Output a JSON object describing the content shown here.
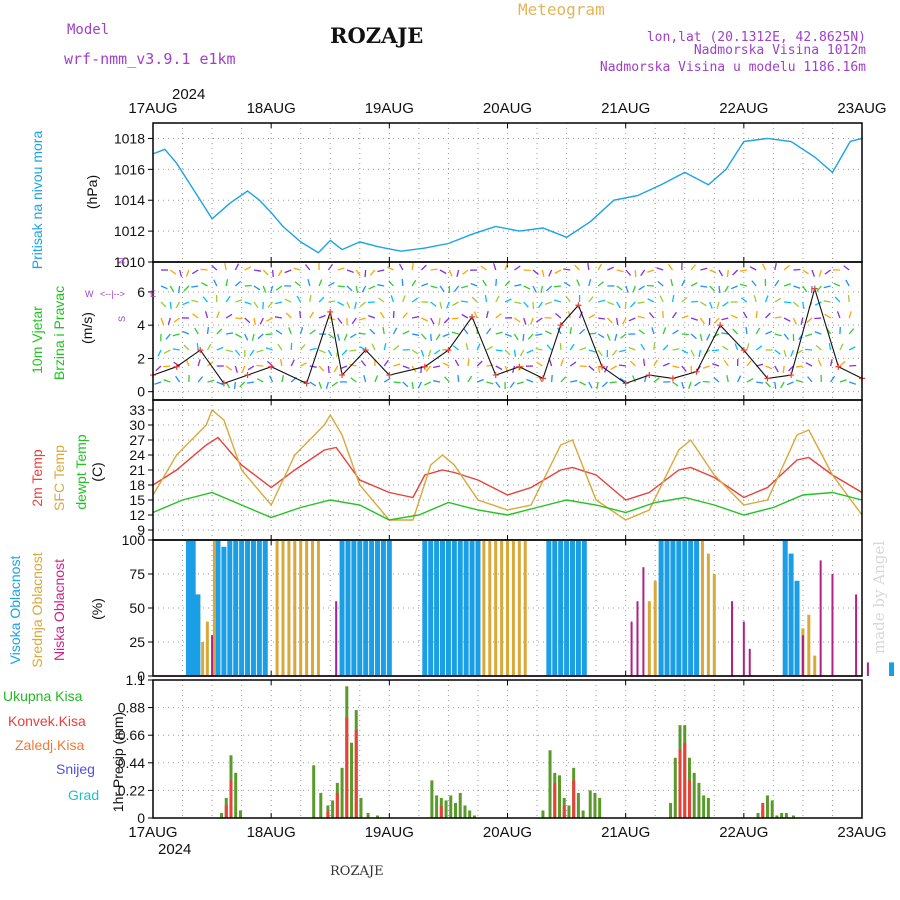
{
  "header": {
    "model_label": "Model",
    "model_name": "wrf-nmm_v3.9.1 e1km",
    "station": "ROZAJE",
    "title": "Meteogram",
    "lonlat": "lon,lat (20.1312E, 42.8625N)",
    "elevation": "Nadmorska Visina 1012m",
    "model_elevation": "Nadmorska Visina u modelu 1186.16m",
    "year_top": "2024",
    "year_bottom": "2024",
    "footer_station": "ROZAJE",
    "watermark": "made by Angel"
  },
  "x_ticks": [
    "17AUG",
    "18AUG",
    "19AUG",
    "20AUG",
    "21AUG",
    "22AUG",
    "23AUG"
  ],
  "panel_labels": {
    "pressure": [
      "Pritisak na nivou mora",
      "(hPa)"
    ],
    "wind": [
      "10m Vjetar",
      "Brzina i Pravac",
      "(m/s)"
    ],
    "compass": [
      "N",
      "S",
      "W",
      "E",
      "<--|-->"
    ],
    "temp": [
      "2m Temp",
      "SFC Temp",
      "dewpt Temp",
      "(C)"
    ],
    "cloud": [
      "Visoka Oblacnost",
      "Srednja Oblacnost",
      "Niska Oblacnost",
      "(%)"
    ],
    "precip_legend": [
      "Ukupna Kisa",
      "Konvek.Kisa",
      "Zaledj.Kisa",
      "Snijeg",
      "Grad"
    ],
    "precip_axis": "1hr Precip (mm)"
  },
  "colors": {
    "pressure": "#1aa3e6",
    "temp2m": "#e8403a",
    "sfc": "#d9a838",
    "dew": "#22c322",
    "high_cloud": "#1a9ee6",
    "mid_cloud": "#d9a838",
    "low_cloud": "#b0208a",
    "total_precip": "#5a9a2a",
    "conv_precip": "#e8403a",
    "grid": "#999999"
  },
  "chart_data": [
    {
      "type": "line",
      "name": "pressure",
      "ylim": [
        1010,
        1019
      ],
      "yticks": [
        "1010",
        "1012",
        "1014",
        "1016",
        "1018"
      ],
      "x_days": [
        0,
        0.1,
        0.2,
        0.35,
        0.5,
        0.65,
        0.8,
        0.9,
        1.0,
        1.1,
        1.25,
        1.4,
        1.5,
        1.6,
        1.75,
        1.9,
        2.1,
        2.3,
        2.5,
        2.7,
        2.9,
        3.1,
        3.3,
        3.5,
        3.7,
        3.9,
        4.1,
        4.3,
        4.5,
        4.7,
        4.85,
        5.0,
        5.2,
        5.4,
        5.6,
        5.75,
        5.9,
        6.0
      ],
      "values": [
        1017.0,
        1017.3,
        1016.4,
        1014.6,
        1012.8,
        1013.8,
        1014.6,
        1014.0,
        1013.2,
        1012.3,
        1011.3,
        1010.6,
        1011.4,
        1010.8,
        1011.3,
        1011.0,
        1010.7,
        1010.9,
        1011.2,
        1011.8,
        1012.3,
        1012.0,
        1012.2,
        1011.6,
        1012.6,
        1014.0,
        1014.3,
        1015.0,
        1015.8,
        1015.0,
        1016.0,
        1017.8,
        1018.0,
        1017.8,
        1016.8,
        1015.8,
        1017.8,
        1018.0
      ]
    },
    {
      "type": "line",
      "name": "wind",
      "ylim": [
        -0.5,
        7.8
      ],
      "yticks": [
        "0",
        "2",
        "4",
        "6"
      ],
      "x_days": [
        0,
        0.2,
        0.4,
        0.6,
        0.8,
        1.0,
        1.3,
        1.5,
        1.6,
        1.8,
        2.0,
        2.3,
        2.5,
        2.7,
        2.9,
        3.1,
        3.3,
        3.45,
        3.6,
        3.8,
        4.0,
        4.2,
        4.4,
        4.6,
        4.8,
        5.0,
        5.2,
        5.4,
        5.6,
        5.8,
        6.0
      ],
      "values": [
        1.0,
        1.5,
        2.5,
        0.5,
        1.0,
        1.5,
        0.5,
        4.8,
        1.0,
        2.5,
        1.0,
        1.5,
        2.5,
        4.5,
        1.0,
        1.5,
        0.8,
        4.0,
        5.2,
        1.5,
        0.5,
        1.0,
        0.8,
        1.2,
        4.0,
        2.5,
        0.8,
        1.0,
        6.2,
        1.5,
        0.8
      ]
    },
    {
      "type": "line",
      "name": "temperature",
      "ylim": [
        7,
        35
      ],
      "yticks": [
        "9",
        "12",
        "15",
        "18",
        "21",
        "24",
        "27",
        "30",
        "33"
      ],
      "series": [
        {
          "name": "2m Temp",
          "x_days": [
            0,
            0.2,
            0.45,
            0.55,
            0.75,
            1.0,
            1.2,
            1.45,
            1.55,
            1.75,
            2.0,
            2.2,
            2.3,
            2.45,
            2.55,
            2.75,
            3.0,
            3.2,
            3.45,
            3.55,
            3.75,
            4.0,
            4.2,
            4.45,
            4.55,
            4.75,
            5.0,
            5.2,
            5.45,
            5.55,
            5.75,
            6.0
          ],
          "values": [
            18,
            21,
            26,
            27.5,
            22,
            17.5,
            21,
            25,
            25.5,
            19,
            16.5,
            15.5,
            20,
            21,
            20.5,
            19,
            16,
            17.5,
            21,
            21.5,
            20,
            15,
            16.5,
            21,
            21.5,
            19.5,
            15.5,
            17.5,
            23,
            23.5,
            20,
            16.5
          ]
        },
        {
          "name": "SFC Temp",
          "x_days": [
            0,
            0.2,
            0.45,
            0.5,
            0.6,
            0.75,
            1.0,
            1.2,
            1.45,
            1.5,
            1.6,
            1.75,
            2.0,
            2.2,
            2.35,
            2.45,
            2.55,
            2.75,
            3.0,
            3.2,
            3.45,
            3.55,
            3.75,
            4.0,
            4.2,
            4.45,
            4.55,
            4.75,
            5.0,
            5.2,
            5.45,
            5.55,
            5.75,
            6.0
          ],
          "values": [
            16,
            24,
            30,
            33,
            31,
            21,
            14,
            24,
            30,
            32,
            28,
            18,
            11,
            11,
            22,
            24,
            22,
            15,
            13,
            14,
            26,
            27,
            15,
            11,
            13,
            25,
            27,
            20,
            14,
            15,
            28,
            29,
            20,
            12
          ]
        },
        {
          "name": "dewpt Temp",
          "x_days": [
            0,
            0.25,
            0.5,
            0.75,
            1.0,
            1.25,
            1.5,
            1.75,
            2.0,
            2.25,
            2.5,
            2.75,
            3.0,
            3.25,
            3.5,
            3.75,
            4.0,
            4.25,
            4.5,
            4.75,
            5.0,
            5.25,
            5.5,
            5.75,
            6.0
          ],
          "values": [
            12.5,
            15,
            16.5,
            14,
            11.5,
            13.5,
            15,
            14,
            11,
            12,
            14.5,
            13,
            12,
            13.5,
            15,
            14,
            12.5,
            14.5,
            15.5,
            14,
            12,
            13.5,
            16,
            16.5,
            15
          ]
        }
      ]
    },
    {
      "type": "bar",
      "name": "cloud_cover",
      "ylim": [
        0,
        100
      ],
      "yticks": [
        "0",
        "25",
        "50",
        "75",
        "100"
      ],
      "series": [
        {
          "name": "Visoka Oblacnost",
          "x_days": [
            0.3,
            0.34,
            0.38,
            0.55,
            0.6,
            0.65,
            0.7,
            0.75,
            0.8,
            0.85,
            0.9,
            0.95,
            1.6,
            1.65,
            1.7,
            1.75,
            1.8,
            1.85,
            1.9,
            1.95,
            2.0,
            2.3,
            2.35,
            2.4,
            2.45,
            2.5,
            2.55,
            2.6,
            2.65,
            2.7,
            2.75,
            3.35,
            3.4,
            3.45,
            3.5,
            3.55,
            3.6,
            3.65,
            4.3,
            4.35,
            4.4,
            4.45,
            4.5,
            4.55,
            4.6,
            5.35,
            5.4,
            5.45,
            6.25
          ],
          "values": [
            100,
            100,
            60,
            100,
            95,
            100,
            100,
            100,
            100,
            100,
            100,
            100,
            100,
            100,
            100,
            100,
            100,
            100,
            100,
            100,
            100,
            100,
            100,
            100,
            100,
            100,
            100,
            100,
            100,
            100,
            100,
            100,
            100,
            100,
            100,
            100,
            100,
            100,
            100,
            100,
            100,
            100,
            100,
            100,
            100,
            100,
            90,
            70,
            10
          ]
        },
        {
          "name": "Srednja Oblacnost",
          "x_days": [
            0.42,
            0.46,
            0.52,
            1.05,
            1.1,
            1.15,
            1.2,
            1.25,
            1.3,
            1.35,
            1.4,
            2.8,
            2.85,
            2.9,
            2.95,
            3.0,
            3.05,
            3.1,
            3.15,
            4.2,
            4.25,
            4.65,
            4.7,
            4.75,
            5.5,
            5.55,
            5.6
          ],
          "values": [
            25,
            40,
            100,
            100,
            100,
            100,
            100,
            100,
            100,
            100,
            100,
            100,
            100,
            100,
            100,
            100,
            100,
            100,
            100,
            55,
            70,
            100,
            90,
            75,
            35,
            45,
            15
          ]
        },
        {
          "name": "Niska Oblacnost",
          "x_days": [
            0.5,
            1.55,
            4.05,
            4.1,
            4.15,
            4.9,
            5.0,
            5.05,
            5.5,
            5.65,
            5.75,
            5.95,
            6.05
          ],
          "values": [
            30,
            55,
            40,
            55,
            80,
            55,
            40,
            20,
            30,
            85,
            75,
            60,
            10
          ]
        }
      ]
    },
    {
      "type": "bar",
      "name": "precipitation",
      "ylim": [
        0,
        1.1
      ],
      "yticks": [
        "0",
        "0.22",
        "0.44",
        "0.66",
        "0.88",
        "1.1"
      ],
      "series": [
        {
          "name": "Ukupna Kisa",
          "x_days": [
            0.58,
            0.62,
            0.66,
            0.7,
            0.74,
            1.36,
            1.42,
            1.48,
            1.52,
            1.56,
            1.6,
            1.64,
            1.68,
            1.72,
            1.76,
            1.82,
            1.9,
            2.36,
            2.4,
            2.44,
            2.48,
            2.52,
            2.56,
            2.6,
            2.64,
            2.68,
            2.72,
            3.3,
            3.36,
            3.4,
            3.44,
            3.48,
            3.52,
            3.56,
            3.6,
            3.64,
            3.7,
            3.74,
            3.78,
            4.38,
            4.42,
            4.46,
            4.5,
            4.54,
            4.58,
            4.62,
            4.66,
            4.7,
            5.12,
            5.16,
            5.2,
            5.24,
            5.28,
            5.32,
            5.36,
            5.42
          ],
          "values": [
            0.04,
            0.16,
            0.5,
            0.36,
            0.06,
            0.42,
            0.2,
            0.1,
            0.14,
            0.28,
            0.4,
            1.05,
            0.6,
            0.86,
            0.16,
            0.04,
            0.02,
            0.3,
            0.18,
            0.16,
            0.14,
            0.18,
            0.12,
            0.2,
            0.1,
            0.06,
            0.02,
            0.06,
            0.54,
            0.36,
            0.34,
            0.16,
            0.1,
            0.4,
            0.2,
            0.06,
            0.22,
            0.2,
            0.16,
            0.12,
            0.48,
            0.74,
            0.74,
            0.48,
            0.36,
            0.28,
            0.18,
            0.16,
            0.04,
            0.06,
            0.18,
            0.14,
            0.02,
            0.04,
            0.04,
            0.02
          ]
        },
        {
          "name": "Konvek.Kisa",
          "x_days": [
            0.62,
            0.66,
            1.48,
            1.56,
            1.64,
            1.72,
            2.44,
            3.4,
            3.48,
            3.56,
            4.46,
            4.5,
            4.54,
            5.16
          ],
          "values": [
            0.1,
            0.3,
            0.05,
            0.2,
            0.8,
            0.7,
            0.1,
            0.28,
            0.1,
            0.3,
            0.55,
            0.6,
            0.3,
            0.12
          ]
        }
      ]
    }
  ]
}
